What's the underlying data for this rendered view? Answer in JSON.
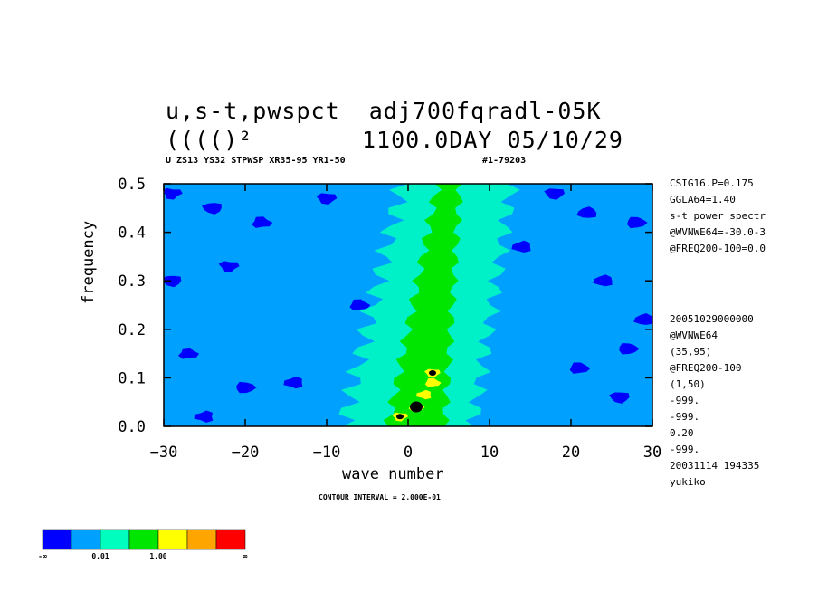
{
  "header": {
    "title_line1": "u,s-t,pwspct  adj700fqradl-05K",
    "title_line2_left": "(((()²",
    "title_line2_right": "1100.0DAY 05/10/29",
    "subtitle": "U ZS13 YS32 STPWSP XR35-95 YR1-50",
    "subtitle_id": "#1-79203"
  },
  "side_info_top": [
    "CSIG16.P=0.175",
    "GGLA64=1.40",
    "s-t power spectr",
    "@WVNWE64=-30.0-3",
    "@FREQ200-100=0.0"
  ],
  "side_info_bottom": [
    "20051029000000",
    "@WVNWE64",
    "(35,95)",
    "@FREQ200-100",
    "(1,50)",
    "-999.",
    "-999.",
    "0.20",
    "-999.",
    "20031114 194335",
    "yukiko"
  ],
  "contour_interval": "CONTOUR INTERVAL = 2.000E-01",
  "colorbar": {
    "colors": [
      "#0000ff",
      "#00a0ff",
      "#00ffbe",
      "#00e600",
      "#ffff00",
      "#ffa500",
      "#ff0000"
    ],
    "labels": [
      "-∞",
      "0.01",
      "1.00",
      "∞"
    ]
  },
  "chart_data": {
    "type": "heatmap",
    "title": "u,s-t,pwspct adj700fqradl-05K",
    "xlabel": "wave number",
    "ylabel": "frequency",
    "xlim": [
      -30,
      30
    ],
    "ylim": [
      0.0,
      0.5
    ],
    "x_ticks": [
      -30,
      -20,
      -10,
      0,
      10,
      20,
      30
    ],
    "y_ticks": [
      0.0,
      0.1,
      0.2,
      0.3,
      0.4,
      0.5
    ],
    "x_tick_labels": [
      "−30",
      "−20",
      "−10",
      "0",
      "10",
      "20",
      "30"
    ],
    "y_tick_labels": [
      "0.0",
      "0.1",
      "0.2",
      "0.3",
      "0.4",
      "0.5"
    ],
    "background_level_color": "#00a0ff",
    "bands": [
      {
        "color": "#00ffbe",
        "x_center_at_f0": 0,
        "x_center_at_f05": 6,
        "half_width": 8
      },
      {
        "color": "#00e600",
        "x_center_at_f0": 1,
        "x_center_at_f05": 5,
        "half_width": 3.5
      }
    ],
    "low_patches": [
      {
        "x": -29,
        "y": 0.48
      },
      {
        "x": -27,
        "y": 0.15
      },
      {
        "x": -25,
        "y": 0.02
      },
      {
        "x": -22,
        "y": 0.33
      },
      {
        "x": -18,
        "y": 0.42
      },
      {
        "x": -14,
        "y": 0.09
      },
      {
        "x": -10,
        "y": 0.47
      },
      {
        "x": -6,
        "y": 0.25
      },
      {
        "x": 14,
        "y": 0.37
      },
      {
        "x": 18,
        "y": 0.48
      },
      {
        "x": 21,
        "y": 0.12
      },
      {
        "x": 24,
        "y": 0.3
      },
      {
        "x": 26,
        "y": 0.06
      },
      {
        "x": 28,
        "y": 0.42
      },
      {
        "x": 29,
        "y": 0.22
      },
      {
        "x": -29,
        "y": 0.3
      },
      {
        "x": 27,
        "y": 0.16
      },
      {
        "x": 22,
        "y": 0.44
      },
      {
        "x": -24,
        "y": 0.45
      },
      {
        "x": -20,
        "y": 0.08
      }
    ],
    "high_peaks": [
      {
        "x": -1,
        "y": 0.02,
        "color": "#ffff00"
      },
      {
        "x": 1,
        "y": 0.04,
        "color": "#ffff00"
      },
      {
        "x": 2,
        "y": 0.065,
        "color": "#ffff00"
      },
      {
        "x": 3,
        "y": 0.11,
        "color": "#ffff00"
      },
      {
        "x": 3,
        "y": 0.09,
        "color": "#ffff00"
      }
    ],
    "black_spots": [
      {
        "x": -1,
        "y": 0.02
      },
      {
        "x": 1,
        "y": 0.04
      },
      {
        "x": 3,
        "y": 0.11
      }
    ]
  }
}
